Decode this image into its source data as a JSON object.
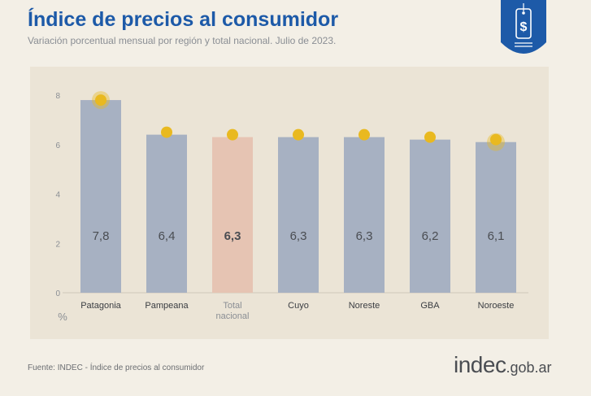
{
  "header": {
    "title": "Índice de precios al consumidor",
    "subtitle": "Variación porcentual mensual por región y total nacional. Julio de 2023."
  },
  "badge": {
    "icon": "price-tag-icon",
    "symbol": "$",
    "color": "#1d5aa8"
  },
  "footer": {
    "source": "Fuente: INDEC - Índice de precios al consumidor",
    "brand_main": "indec",
    "brand_suffix": ".gob.ar"
  },
  "colors": {
    "bar": "#a7b1c2",
    "highlight_bar": "#e6c4b3",
    "marker": "#e9b920",
    "label": "#4a4d52",
    "axis": "#8a8e94"
  },
  "chart_data": {
    "type": "bar",
    "categories": [
      "Patagonia",
      "Pampeana",
      "Total nacional",
      "Cuyo",
      "Noreste",
      "GBA",
      "Noroeste"
    ],
    "values": [
      7.8,
      6.4,
      6.3,
      6.3,
      6.3,
      6.2,
      6.1
    ],
    "value_labels": [
      "7,8",
      "6,4",
      "6,3",
      "6,3",
      "6,3",
      "6,2",
      "6,1"
    ],
    "highlight_index": 2,
    "highlight_marker_indices": [
      0,
      6
    ],
    "ylim": [
      0,
      8
    ],
    "yticks": [
      "0",
      "2",
      "4",
      "6",
      "8"
    ],
    "ylabel": "%",
    "grid": false
  }
}
